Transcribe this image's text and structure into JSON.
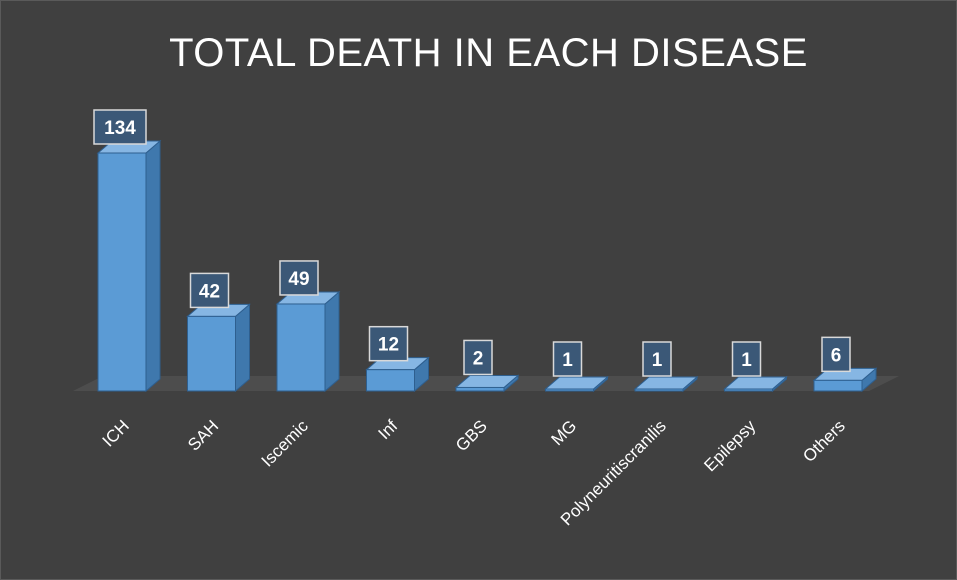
{
  "chart_data": {
    "type": "bar",
    "title": "TOTAL DEATH IN EACH DISEASE",
    "categories": [
      "ICH",
      "SAH",
      "Iscemic",
      "Inf",
      "GBS",
      "MG",
      "Polyneuritiscranilis",
      "Epilepsy",
      "Others"
    ],
    "values": [
      134,
      42,
      49,
      12,
      2,
      1,
      1,
      1,
      6
    ],
    "data_labels": [
      "134",
      "42",
      "49",
      "12",
      "2",
      "1",
      "1",
      "1",
      "6"
    ],
    "ylim": [
      0,
      134
    ],
    "grid": false,
    "legend": "none",
    "style": "3d-column"
  },
  "colors": {
    "background": "#404040",
    "bar_front": "#5b9bd5",
    "bar_side": "#3f78ad",
    "bar_top": "#86b6e3",
    "label_box": "#3b5877",
    "text": "#ffffff"
  }
}
